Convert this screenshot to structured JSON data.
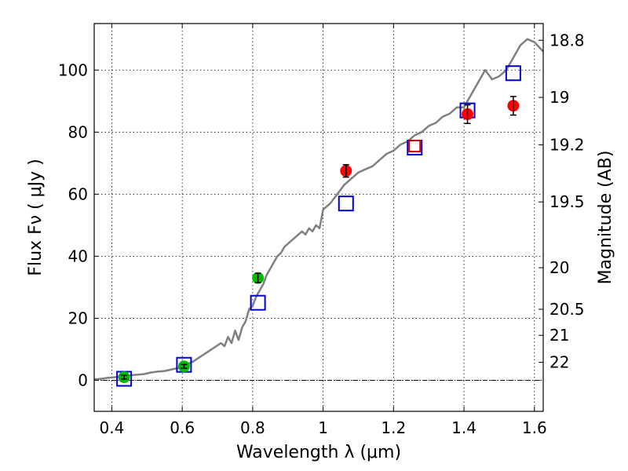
{
  "chart_data": {
    "type": "scatter",
    "title": "",
    "xlabel": "Wavelength  λ (μm)",
    "ylabel": "Flux  Fν  ( μJy )",
    "y2label": "Magnitude (AB)",
    "xlim": [
      0.35,
      1.625
    ],
    "ylim": [
      -10,
      115
    ],
    "grid": true,
    "x_ticks": [
      0.4,
      0.6,
      0.8,
      1.0,
      1.2,
      1.4,
      1.6
    ],
    "x_tick_labels": [
      "0.4",
      "0.6",
      "0.8",
      "1",
      "1.2",
      "1.4",
      "1.6"
    ],
    "y_ticks": [
      0,
      20,
      40,
      60,
      80,
      100
    ],
    "y_tick_labels": [
      "0",
      "20",
      "40",
      "60",
      "80",
      "100"
    ],
    "y2_ticks": [
      {
        "label": "18.8",
        "flux": 109.6
      },
      {
        "label": "19",
        "flux": 91.2
      },
      {
        "label": "19.2",
        "flux": 75.9
      },
      {
        "label": "19.5",
        "flux": 57.5
      },
      {
        "label": "20",
        "flux": 36.3
      },
      {
        "label": "20.5",
        "flux": 22.9
      },
      {
        "label": "21",
        "flux": 14.5
      },
      {
        "label": "22",
        "flux": 5.8
      }
    ],
    "series": [
      {
        "kind": "line",
        "color": "#808080",
        "x": [
          0.35,
          0.37,
          0.39,
          0.41,
          0.43,
          0.45,
          0.47,
          0.49,
          0.51,
          0.53,
          0.55,
          0.57,
          0.59,
          0.61,
          0.63,
          0.65,
          0.67,
          0.69,
          0.71,
          0.72,
          0.73,
          0.74,
          0.75,
          0.76,
          0.77,
          0.78,
          0.79,
          0.8,
          0.81,
          0.82,
          0.83,
          0.84,
          0.85,
          0.86,
          0.87,
          0.88,
          0.89,
          0.9,
          0.91,
          0.92,
          0.93,
          0.94,
          0.95,
          0.96,
          0.97,
          0.98,
          0.99,
          1.0,
          1.02,
          1.04,
          1.06,
          1.08,
          1.1,
          1.12,
          1.14,
          1.16,
          1.18,
          1.2,
          1.22,
          1.24,
          1.26,
          1.28,
          1.3,
          1.32,
          1.34,
          1.36,
          1.38,
          1.4,
          1.42,
          1.44,
          1.46,
          1.48,
          1.5,
          1.52,
          1.54,
          1.56,
          1.58,
          1.6,
          1.625
        ],
        "y": [
          0.3,
          0.5,
          0.8,
          1.0,
          1.2,
          1.6,
          1.8,
          2.0,
          2.5,
          2.8,
          3.0,
          3.5,
          4.0,
          5.0,
          6.0,
          7.5,
          9.0,
          10.5,
          12.0,
          11.0,
          14.0,
          12.0,
          16.0,
          13.0,
          17.0,
          19.0,
          23.0,
          24.0,
          27.0,
          29.0,
          31.0,
          34.0,
          36.0,
          38.0,
          40.0,
          41.0,
          43.0,
          44.0,
          45.0,
          46.0,
          47.0,
          48.0,
          47.0,
          49.0,
          48.0,
          50.0,
          49.0,
          55.0,
          57.0,
          60.0,
          63.0,
          65.0,
          67.0,
          68.0,
          69.0,
          71.0,
          73.0,
          74.0,
          76.0,
          77.0,
          79.0,
          80.0,
          82.0,
          83.0,
          85.0,
          86.0,
          88.0,
          88.0,
          92.0,
          96.0,
          100.0,
          97.0,
          98.0,
          100.0,
          104.0,
          108.0,
          110.0,
          109.0,
          106.0
        ]
      },
      {
        "kind": "points",
        "marker": "open-square",
        "color": "#0000cc",
        "x": [
          0.435,
          0.605,
          0.815,
          1.065,
          1.26,
          1.41,
          1.54
        ],
        "y": [
          0.5,
          5.0,
          25.0,
          57.0,
          75.0,
          87.0,
          99.0
        ]
      },
      {
        "kind": "points",
        "marker": "filled-circle",
        "color": "#00bb00",
        "x": [
          0.435,
          0.605,
          0.815
        ],
        "y": [
          1.0,
          4.5,
          33.0
        ],
        "err": [
          0.6,
          0.6,
          1.5
        ]
      },
      {
        "kind": "points",
        "marker": "filled-circle",
        "color": "#ff0000",
        "x": [
          1.065,
          1.41,
          1.54
        ],
        "y": [
          67.5,
          85.8,
          88.5
        ],
        "err": [
          2.0,
          3.0,
          3.0
        ]
      },
      {
        "kind": "points",
        "marker": "open-square",
        "color": "#cc0000",
        "x": [
          1.26
        ],
        "y": [
          75.5
        ]
      }
    ]
  }
}
